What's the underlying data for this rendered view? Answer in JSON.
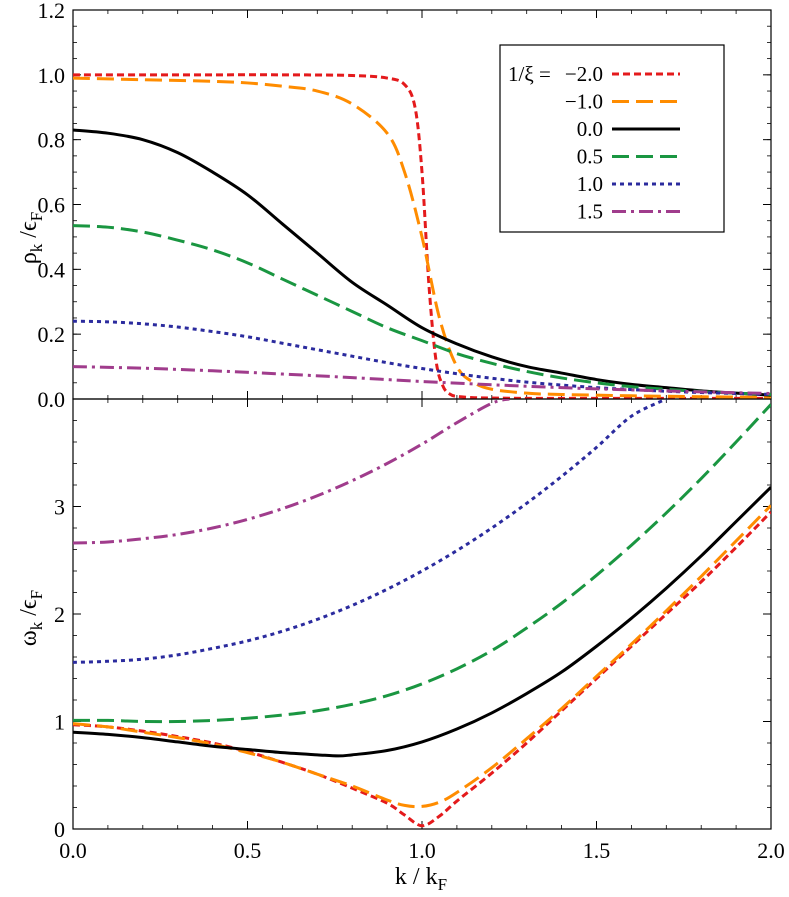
{
  "chart_data": [
    {
      "type": "line",
      "panel": "top",
      "xlabel": {
        "main": "k",
        "sep": " / ",
        "main2": "k",
        "sub": "F"
      },
      "ylabel": {
        "main": "ρ",
        "sub": "k",
        "sep": " /",
        "main2": "ϵ",
        "sub2": "F"
      },
      "xlim": [
        0,
        2.0
      ],
      "ylim": [
        0,
        1.2
      ],
      "xticks": [
        "0.0",
        "0.5",
        "1.0",
        "1.5",
        "2.0"
      ],
      "yticks": [
        "0.0",
        "0.2",
        "0.4",
        "0.6",
        "0.8",
        "1.0",
        "1.2"
      ],
      "grid": false,
      "legend_position": "top-right",
      "legend_title": "1/ξ =",
      "series": [
        {
          "name": "−2.0",
          "color": "#e41a1c",
          "dash": "short-dash",
          "x": [
            0,
            0.2,
            0.4,
            0.6,
            0.8,
            0.9,
            0.95,
            0.98,
            1.0,
            1.02,
            1.04,
            1.06,
            1.08,
            1.1,
            1.15,
            1.2,
            1.3,
            1.5,
            1.7,
            2.0
          ],
          "y": [
            1.0,
            1.0,
            1.0,
            1.0,
            0.998,
            0.99,
            0.97,
            0.9,
            0.7,
            0.35,
            0.12,
            0.04,
            0.015,
            0.008,
            0.004,
            0.003,
            0.002,
            0.002,
            0.002,
            0.002
          ]
        },
        {
          "name": "−1.0",
          "color": "#ff8c00",
          "dash": "long-dash",
          "x": [
            0,
            0.2,
            0.4,
            0.5,
            0.6,
            0.7,
            0.8,
            0.9,
            0.95,
            1.0,
            1.05,
            1.1,
            1.15,
            1.2,
            1.3,
            1.4,
            1.6,
            1.8,
            2.0
          ],
          "y": [
            0.99,
            0.985,
            0.98,
            0.975,
            0.965,
            0.95,
            0.91,
            0.82,
            0.7,
            0.5,
            0.25,
            0.1,
            0.05,
            0.03,
            0.018,
            0.014,
            0.01,
            0.007,
            0.005
          ]
        },
        {
          "name": "0.0",
          "color": "#000000",
          "dash": "solid",
          "x": [
            0,
            0.1,
            0.2,
            0.3,
            0.4,
            0.5,
            0.6,
            0.7,
            0.8,
            0.9,
            1.0,
            1.1,
            1.2,
            1.3,
            1.4,
            1.5,
            1.6,
            1.7,
            1.8,
            1.9,
            2.0
          ],
          "y": [
            0.83,
            0.82,
            0.8,
            0.76,
            0.7,
            0.63,
            0.54,
            0.45,
            0.36,
            0.29,
            0.22,
            0.17,
            0.13,
            0.1,
            0.08,
            0.06,
            0.045,
            0.035,
            0.025,
            0.018,
            0.012
          ]
        },
        {
          "name": "0.5",
          "color": "#1a9641",
          "dash": "long-dash",
          "x": [
            0,
            0.1,
            0.2,
            0.3,
            0.4,
            0.5,
            0.6,
            0.7,
            0.8,
            0.9,
            1.0,
            1.1,
            1.2,
            1.3,
            1.4,
            1.5,
            1.6,
            1.7,
            1.8,
            1.9,
            2.0
          ],
          "y": [
            0.535,
            0.53,
            0.515,
            0.49,
            0.46,
            0.42,
            0.37,
            0.32,
            0.27,
            0.22,
            0.18,
            0.14,
            0.11,
            0.085,
            0.065,
            0.05,
            0.038,
            0.03,
            0.023,
            0.018,
            0.014
          ]
        },
        {
          "name": "1.0",
          "color": "#2b2b9e",
          "dash": "dotted",
          "x": [
            0,
            0.1,
            0.2,
            0.3,
            0.4,
            0.5,
            0.6,
            0.7,
            0.8,
            0.9,
            1.0,
            1.1,
            1.2,
            1.3,
            1.4,
            1.5,
            1.6,
            1.7,
            1.8,
            1.9,
            2.0
          ],
          "y": [
            0.24,
            0.238,
            0.232,
            0.222,
            0.208,
            0.192,
            0.172,
            0.152,
            0.132,
            0.112,
            0.094,
            0.078,
            0.064,
            0.052,
            0.043,
            0.035,
            0.029,
            0.024,
            0.02,
            0.017,
            0.014
          ]
        },
        {
          "name": "1.5",
          "color": "#a03c8c",
          "dash": "dash-dot",
          "x": [
            0,
            0.2,
            0.4,
            0.6,
            0.8,
            1.0,
            1.2,
            1.4,
            1.6,
            1.8,
            2.0
          ],
          "y": [
            0.1,
            0.095,
            0.087,
            0.077,
            0.066,
            0.054,
            0.044,
            0.035,
            0.028,
            0.022,
            0.017
          ]
        }
      ]
    },
    {
      "type": "line",
      "panel": "bottom",
      "xlabel": {
        "main": "k",
        "sep": " / ",
        "main2": "k",
        "sub": "F"
      },
      "ylabel": {
        "main": "ω",
        "sub": "k",
        "sep": " /",
        "main2": "ϵ",
        "sub2": "F"
      },
      "xlim": [
        0,
        2.0
      ],
      "ylim": [
        0,
        4.0
      ],
      "xticks": [
        "0.0",
        "0.5",
        "1.0",
        "1.5",
        "2.0"
      ],
      "yticks": [
        "0",
        "1",
        "2",
        "3"
      ],
      "grid": false,
      "series": [
        {
          "name": "−2.0",
          "color": "#e41a1c",
          "dash": "short-dash",
          "x": [
            0,
            0.1,
            0.2,
            0.3,
            0.4,
            0.5,
            0.6,
            0.7,
            0.8,
            0.9,
            0.95,
            1.0,
            1.05,
            1.1,
            1.2,
            1.3,
            1.4,
            1.5,
            1.6,
            1.7,
            1.8,
            1.9,
            2.0
          ],
          "y": [
            0.97,
            0.95,
            0.91,
            0.86,
            0.8,
            0.72,
            0.62,
            0.51,
            0.38,
            0.24,
            0.13,
            0.03,
            0.12,
            0.26,
            0.52,
            0.8,
            1.1,
            1.4,
            1.7,
            2.0,
            2.3,
            2.62,
            2.95
          ]
        },
        {
          "name": "−1.0",
          "color": "#ff8c00",
          "dash": "long-dash",
          "x": [
            0,
            0.1,
            0.2,
            0.3,
            0.4,
            0.5,
            0.6,
            0.7,
            0.8,
            0.9,
            0.95,
            1.0,
            1.05,
            1.1,
            1.2,
            1.3,
            1.4,
            1.5,
            1.6,
            1.7,
            1.8,
            1.9,
            2.0
          ],
          "y": [
            0.98,
            0.95,
            0.9,
            0.85,
            0.79,
            0.71,
            0.62,
            0.51,
            0.4,
            0.27,
            0.22,
            0.21,
            0.25,
            0.34,
            0.57,
            0.84,
            1.12,
            1.42,
            1.72,
            2.03,
            2.35,
            2.68,
            3.01
          ]
        },
        {
          "name": "0.0",
          "color": "#000000",
          "dash": "solid",
          "x": [
            0,
            0.1,
            0.2,
            0.3,
            0.4,
            0.5,
            0.6,
            0.7,
            0.76,
            0.8,
            0.9,
            1.0,
            1.1,
            1.2,
            1.3,
            1.4,
            1.5,
            1.6,
            1.7,
            1.8,
            1.9,
            2.0
          ],
          "y": [
            0.9,
            0.88,
            0.85,
            0.81,
            0.77,
            0.74,
            0.71,
            0.69,
            0.68,
            0.69,
            0.73,
            0.81,
            0.93,
            1.08,
            1.26,
            1.46,
            1.7,
            1.96,
            2.24,
            2.54,
            2.86,
            3.18
          ]
        },
        {
          "name": "0.5",
          "color": "#1a9641",
          "dash": "long-dash",
          "x": [
            0,
            0.1,
            0.2,
            0.3,
            0.4,
            0.5,
            0.6,
            0.7,
            0.8,
            0.9,
            1.0,
            1.1,
            1.2,
            1.3,
            1.4,
            1.5,
            1.6,
            1.7,
            1.8,
            1.9,
            2.0
          ],
          "y": [
            1.01,
            1.01,
            1.0,
            1.0,
            1.01,
            1.03,
            1.06,
            1.1,
            1.16,
            1.24,
            1.35,
            1.49,
            1.66,
            1.87,
            2.1,
            2.36,
            2.64,
            2.94,
            3.26,
            3.6,
            3.95
          ]
        },
        {
          "name": "1.0",
          "color": "#2b2b9e",
          "dash": "dotted",
          "x": [
            0,
            0.1,
            0.2,
            0.3,
            0.4,
            0.5,
            0.6,
            0.7,
            0.8,
            0.9,
            1.0,
            1.1,
            1.2,
            1.3,
            1.4,
            1.5,
            1.6,
            1.7
          ],
          "y": [
            1.55,
            1.56,
            1.58,
            1.62,
            1.68,
            1.75,
            1.84,
            1.95,
            2.08,
            2.23,
            2.4,
            2.59,
            2.8,
            3.03,
            3.28,
            3.55,
            3.84,
            4.0
          ]
        },
        {
          "name": "1.5",
          "color": "#a03c8c",
          "dash": "dash-dot",
          "x": [
            0,
            0.1,
            0.2,
            0.3,
            0.4,
            0.5,
            0.6,
            0.7,
            0.8,
            0.9,
            1.0,
            1.1,
            1.2,
            1.25
          ],
          "y": [
            2.66,
            2.67,
            2.7,
            2.74,
            2.8,
            2.88,
            2.98,
            3.1,
            3.24,
            3.4,
            3.58,
            3.78,
            3.96,
            4.0
          ]
        }
      ]
    }
  ]
}
